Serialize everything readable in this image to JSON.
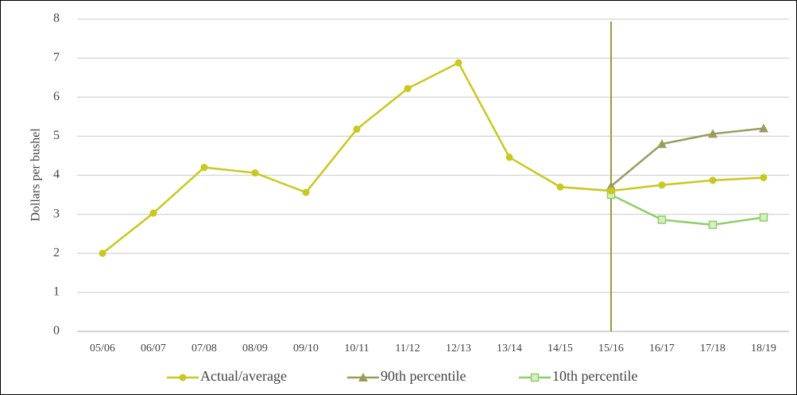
{
  "chart_data": {
    "type": "line",
    "y_label": "Dollars per bushel",
    "categories": [
      "05/06",
      "06/07",
      "07/08",
      "08/09",
      "09/10",
      "10/11",
      "11/12",
      "12/13",
      "13/14",
      "14/15",
      "15/16",
      "16/17",
      "17/18",
      "18/19"
    ],
    "series": [
      {
        "name": "Actual/average",
        "color": "#c8c81e",
        "marker": "circle",
        "values": [
          2.0,
          3.03,
          4.2,
          4.06,
          3.56,
          5.18,
          6.22,
          6.88,
          4.46,
          3.7,
          3.6,
          3.75,
          3.87,
          3.94
        ]
      },
      {
        "name": "90th percentile",
        "color": "#9b9b5e",
        "marker": "triangle",
        "values": [
          null,
          null,
          null,
          null,
          null,
          null,
          null,
          null,
          null,
          null,
          3.72,
          4.8,
          5.06,
          5.2
        ]
      },
      {
        "name": "10th percentile",
        "color": "#8fce6a",
        "marker": "square",
        "values": [
          null,
          null,
          null,
          null,
          null,
          null,
          null,
          null,
          null,
          null,
          3.5,
          2.86,
          2.73,
          2.92
        ]
      }
    ],
    "ylim": [
      0,
      8
    ],
    "yticks": [
      0,
      1,
      2,
      3,
      4,
      5,
      6,
      7,
      8
    ],
    "grid": true
  }
}
